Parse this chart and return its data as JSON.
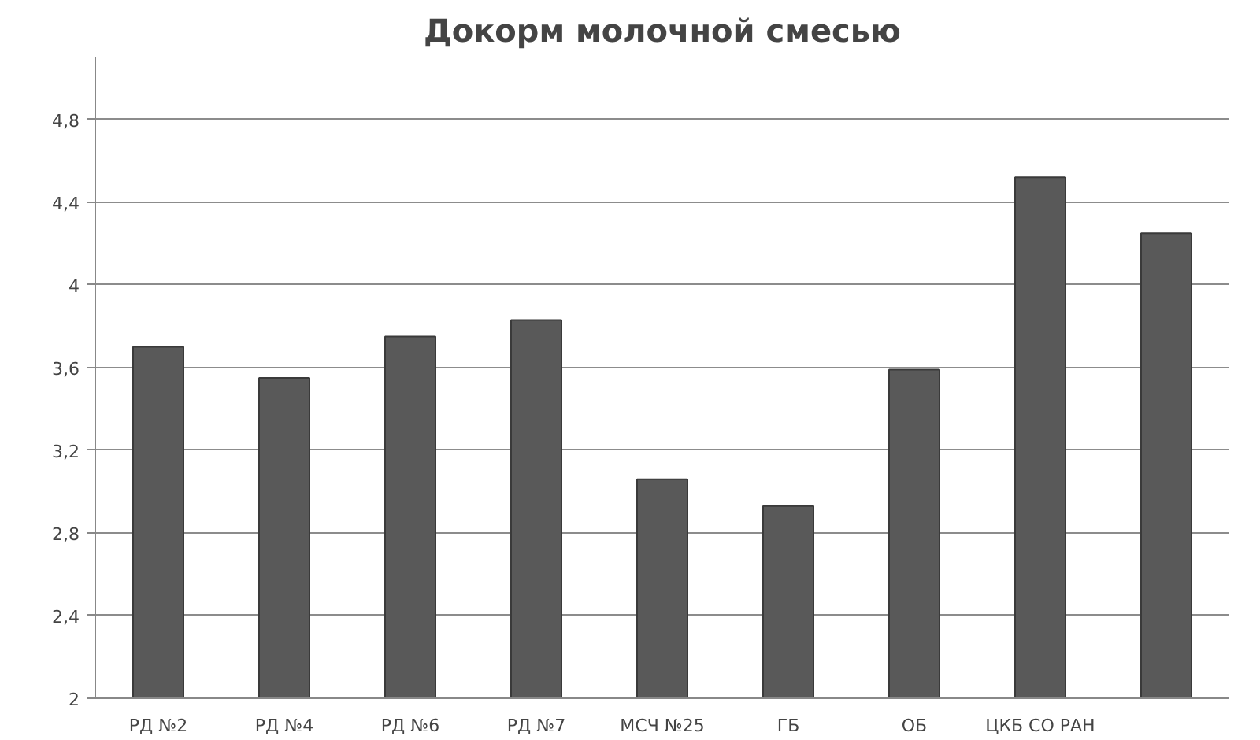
{
  "chart_data": {
    "type": "bar",
    "title": "Докорм молочной смесью",
    "categories": [
      "РД №2",
      "РД №4",
      "РД №6",
      "РД №7",
      "МСЧ №25",
      "ГБ",
      "ОБ",
      "ЦКБ СО РАН",
      null
    ],
    "values": [
      3.7,
      3.55,
      3.75,
      3.83,
      3.06,
      2.93,
      3.59,
      4.52,
      4.25
    ],
    "color": "#595959",
    "ylim": [
      2,
      5.1
    ],
    "yticks": [
      2,
      {
        "value": 2.4,
        "label": "2,4"
      },
      {
        "value": 2.8,
        "label": "2,8"
      },
      {
        "value": 3.2,
        "label": "3,2"
      },
      {
        "value": 3.6,
        "label": "3,6"
      },
      4,
      {
        "value": 4.4,
        "label": "4,4"
      },
      {
        "value": 4.8,
        "label": "4,8"
      }
    ],
    "grid": "y"
  }
}
